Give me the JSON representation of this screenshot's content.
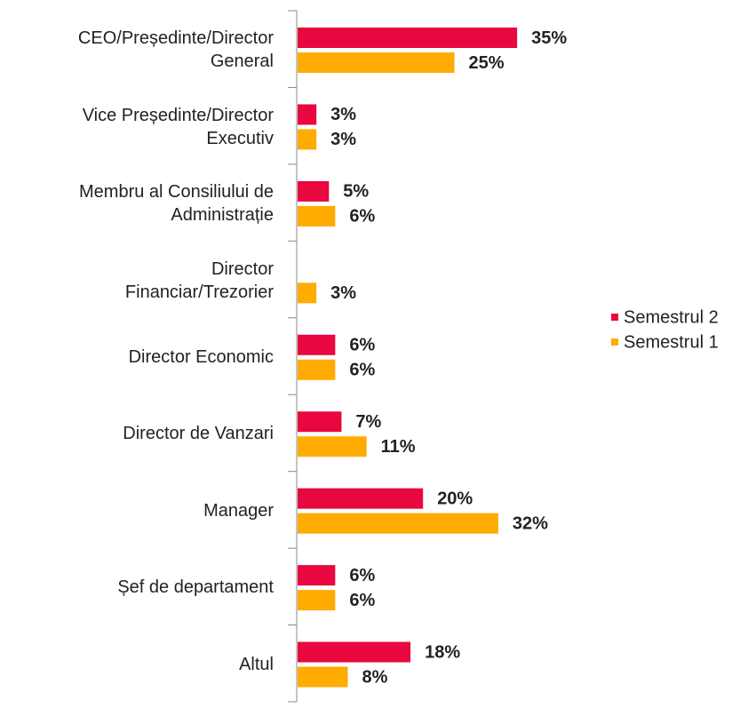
{
  "chart_data": {
    "type": "bar",
    "orientation": "horizontal",
    "categories": [
      "CEO/Președinte/Director\nGeneral",
      "Vice Președinte/Director\nExecutiv",
      "Membru al Consiliului de\nAdministrație",
      "Director\nFinanciar/Trezorier",
      "Director Economic",
      "Director de Vanzari",
      "Manager",
      "Șef de departament",
      "Altul"
    ],
    "series": [
      {
        "name": "Semestrul 2",
        "color": "#e8073f",
        "values": [
          35,
          3,
          5,
          null,
          6,
          7,
          20,
          6,
          18
        ],
        "value_labels": [
          "35%",
          "3%",
          "5%",
          null,
          "6%",
          "7%",
          "20%",
          "6%",
          "18%"
        ]
      },
      {
        "name": "Semestrul 1",
        "color": "#ffab00",
        "values": [
          25,
          3,
          6,
          3,
          6,
          11,
          32,
          6,
          8
        ],
        "value_labels": [
          "25%",
          "3%",
          "6%",
          "3%",
          "6%",
          "11%",
          "32%",
          "6%",
          "8%"
        ]
      }
    ],
    "legend": "right"
  }
}
